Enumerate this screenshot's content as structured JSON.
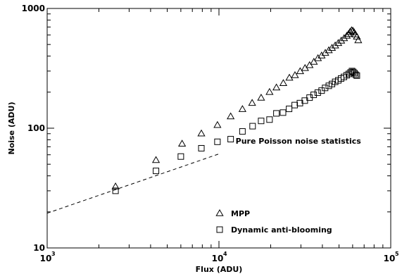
{
  "chart_data": {
    "type": "scatter",
    "xlabel": "Flux (ADU)",
    "ylabel": "Noise (ADU)",
    "x_scale": "log",
    "y_scale": "log",
    "xlim": [
      1000,
      100000
    ],
    "ylim": [
      10,
      1000
    ],
    "x_ticks": [
      {
        "value": 1000,
        "base": "10",
        "exp": "3"
      },
      {
        "value": 10000,
        "base": "10",
        "exp": "4"
      },
      {
        "value": 100000,
        "base": "10",
        "exp": "5"
      }
    ],
    "y_ticks": [
      {
        "value": 10,
        "label": "10"
      },
      {
        "value": 100,
        "label": "100"
      },
      {
        "value": 1000,
        "label": "1000"
      }
    ],
    "grid": false,
    "legend_position": "bottom-center",
    "annotation": {
      "text": "Pure Poisson noise statistics",
      "x": 12500,
      "y": 74
    },
    "poisson_line": {
      "style": "dashed",
      "points": [
        [
          1000,
          19.5
        ],
        [
          10000,
          61
        ]
      ]
    },
    "series": [
      {
        "name": "MPP",
        "marker": "triangle",
        "points": [
          [
            2500,
            32.5
          ],
          [
            4300,
            54
          ],
          [
            6100,
            74
          ],
          [
            7900,
            90
          ],
          [
            9800,
            106
          ],
          [
            11700,
            125
          ],
          [
            13700,
            144
          ],
          [
            15600,
            162
          ],
          [
            17600,
            179
          ],
          [
            19700,
            200
          ],
          [
            21600,
            218
          ],
          [
            23700,
            237
          ],
          [
            25700,
            263
          ],
          [
            27700,
            276
          ],
          [
            29700,
            298
          ],
          [
            31700,
            317
          ],
          [
            33700,
            335
          ],
          [
            35700,
            357
          ],
          [
            37700,
            383
          ],
          [
            39600,
            403
          ],
          [
            41600,
            424
          ],
          [
            43600,
            446
          ],
          [
            45500,
            467
          ],
          [
            47500,
            489
          ],
          [
            49500,
            512
          ],
          [
            51500,
            536
          ],
          [
            53500,
            562
          ],
          [
            55500,
            590
          ],
          [
            56800,
            610
          ],
          [
            58000,
            635
          ],
          [
            59200,
            655
          ],
          [
            60200,
            648
          ],
          [
            61200,
            630
          ],
          [
            62300,
            605
          ],
          [
            63500,
            580
          ],
          [
            64700,
            540
          ]
        ]
      },
      {
        "name": "Dynamic anti-blooming",
        "marker": "square",
        "points": [
          [
            2500,
            30
          ],
          [
            4300,
            44
          ],
          [
            6000,
            58
          ],
          [
            7900,
            68
          ],
          [
            9800,
            77
          ],
          [
            11700,
            81
          ],
          [
            13700,
            94
          ],
          [
            15700,
            104
          ],
          [
            17600,
            115
          ],
          [
            19700,
            118
          ],
          [
            21600,
            133
          ],
          [
            23600,
            135
          ],
          [
            25600,
            145
          ],
          [
            27600,
            156
          ],
          [
            29600,
            162
          ],
          [
            31600,
            170
          ],
          [
            33700,
            180
          ],
          [
            35600,
            190
          ],
          [
            37600,
            198
          ],
          [
            39600,
            206
          ],
          [
            41500,
            217
          ],
          [
            43600,
            226
          ],
          [
            45500,
            234
          ],
          [
            47500,
            244
          ],
          [
            49500,
            251
          ],
          [
            51400,
            260
          ],
          [
            53400,
            268
          ],
          [
            55400,
            277
          ],
          [
            57000,
            284
          ],
          [
            58400,
            292
          ],
          [
            59500,
            300
          ],
          [
            60500,
            295
          ],
          [
            61500,
            288
          ],
          [
            62500,
            280
          ],
          [
            63500,
            275
          ]
        ]
      }
    ]
  }
}
